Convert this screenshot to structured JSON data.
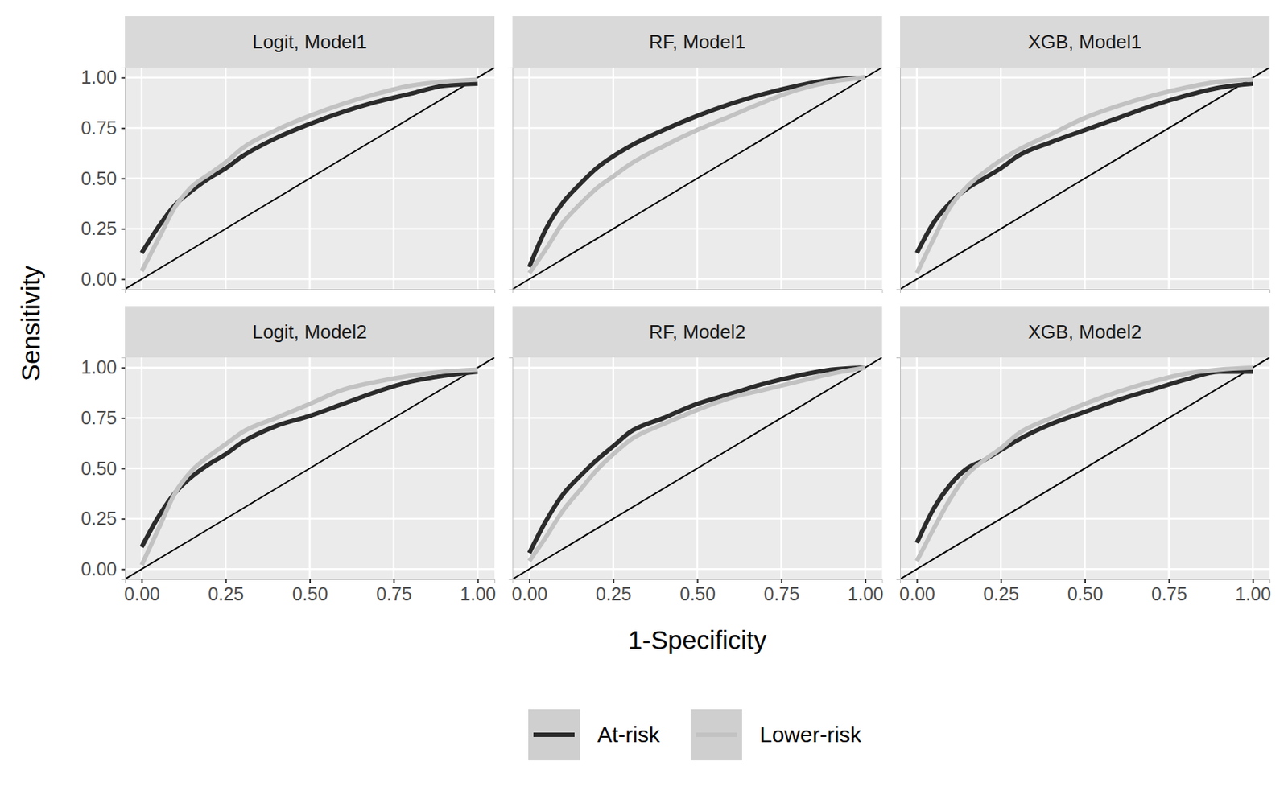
{
  "chart_data": [
    {
      "type": "line",
      "title": "Logit, Model1",
      "x": [
        0,
        0.05,
        0.1,
        0.15,
        0.2,
        0.25,
        0.3,
        0.4,
        0.5,
        0.6,
        0.7,
        0.8,
        0.9,
        1.0
      ],
      "series": [
        {
          "name": "At-risk",
          "color": "#2b2b2b",
          "values": [
            0.13,
            0.26,
            0.37,
            0.44,
            0.5,
            0.55,
            0.61,
            0.7,
            0.77,
            0.83,
            0.88,
            0.92,
            0.96,
            0.97
          ]
        },
        {
          "name": "Lower-risk",
          "color": "#c2c2c2",
          "values": [
            0.04,
            0.2,
            0.36,
            0.46,
            0.52,
            0.58,
            0.65,
            0.74,
            0.81,
            0.87,
            0.92,
            0.96,
            0.98,
            0.99
          ]
        }
      ],
      "xlim": [
        -0.05,
        1.05
      ],
      "ylim": [
        -0.05,
        1.05
      ],
      "xticks": [
        {
          "value": 0,
          "label": "0.00"
        },
        {
          "value": 0.25,
          "label": "0.25"
        },
        {
          "value": 0.5,
          "label": "0.50"
        },
        {
          "value": 0.75,
          "label": "0.75"
        },
        {
          "value": 1,
          "label": "1.00"
        }
      ],
      "yticks": [
        {
          "value": 0,
          "label": "0.00"
        },
        {
          "value": 0.25,
          "label": "0.25"
        },
        {
          "value": 0.5,
          "label": "0.50"
        },
        {
          "value": 0.75,
          "label": "0.75"
        },
        {
          "value": 1,
          "label": "1.00"
        }
      ],
      "grid": true,
      "tick_labels": "y",
      "legend": "bottom"
    },
    {
      "type": "line",
      "title": "RF, Model1",
      "x": [
        0,
        0.05,
        0.1,
        0.15,
        0.2,
        0.25,
        0.3,
        0.4,
        0.5,
        0.6,
        0.7,
        0.8,
        0.9,
        1.0
      ],
      "series": [
        {
          "name": "At-risk",
          "color": "#2b2b2b",
          "values": [
            0.06,
            0.25,
            0.38,
            0.47,
            0.55,
            0.61,
            0.66,
            0.74,
            0.81,
            0.87,
            0.92,
            0.96,
            0.99,
            1.0
          ]
        },
        {
          "name": "Lower-risk",
          "color": "#c2c2c2",
          "values": [
            0.03,
            0.15,
            0.28,
            0.37,
            0.45,
            0.51,
            0.57,
            0.66,
            0.74,
            0.81,
            0.88,
            0.94,
            0.98,
            1.0
          ]
        }
      ],
      "xlim": [
        -0.05,
        1.05
      ],
      "ylim": [
        -0.05,
        1.05
      ],
      "xticks": [
        {
          "value": 0,
          "label": "0.00"
        },
        {
          "value": 0.25,
          "label": "0.25"
        },
        {
          "value": 0.5,
          "label": "0.50"
        },
        {
          "value": 0.75,
          "label": "0.75"
        },
        {
          "value": 1,
          "label": "1.00"
        }
      ],
      "yticks": [
        {
          "value": 0,
          "label": "0.00"
        },
        {
          "value": 0.25,
          "label": "0.25"
        },
        {
          "value": 0.5,
          "label": "0.50"
        },
        {
          "value": 0.75,
          "label": "0.75"
        },
        {
          "value": 1,
          "label": "1.00"
        }
      ],
      "grid": true,
      "tick_labels": false
    },
    {
      "type": "line",
      "title": "XGB, Model1",
      "x": [
        0,
        0.05,
        0.1,
        0.15,
        0.2,
        0.25,
        0.3,
        0.4,
        0.5,
        0.6,
        0.7,
        0.8,
        0.9,
        1.0
      ],
      "series": [
        {
          "name": "At-risk",
          "color": "#2b2b2b",
          "values": [
            0.13,
            0.28,
            0.38,
            0.45,
            0.5,
            0.55,
            0.61,
            0.68,
            0.74,
            0.8,
            0.86,
            0.91,
            0.95,
            0.97
          ]
        },
        {
          "name": "Lower-risk",
          "color": "#c2c2c2",
          "values": [
            0.03,
            0.2,
            0.36,
            0.46,
            0.53,
            0.59,
            0.64,
            0.72,
            0.8,
            0.86,
            0.91,
            0.95,
            0.98,
            0.99
          ]
        }
      ],
      "xlim": [
        -0.05,
        1.05
      ],
      "ylim": [
        -0.05,
        1.05
      ],
      "xticks": [
        {
          "value": 0,
          "label": "0.00"
        },
        {
          "value": 0.25,
          "label": "0.25"
        },
        {
          "value": 0.5,
          "label": "0.50"
        },
        {
          "value": 0.75,
          "label": "0.75"
        },
        {
          "value": 1,
          "label": "1.00"
        }
      ],
      "yticks": [
        {
          "value": 0,
          "label": "0.00"
        },
        {
          "value": 0.25,
          "label": "0.25"
        },
        {
          "value": 0.5,
          "label": "0.50"
        },
        {
          "value": 0.75,
          "label": "0.75"
        },
        {
          "value": 1,
          "label": "1.00"
        }
      ],
      "grid": true,
      "tick_labels": false
    },
    {
      "type": "line",
      "title": "Logit, Model2",
      "x": [
        0,
        0.05,
        0.1,
        0.15,
        0.2,
        0.25,
        0.3,
        0.4,
        0.5,
        0.6,
        0.7,
        0.8,
        0.9,
        1.0
      ],
      "series": [
        {
          "name": "At-risk",
          "color": "#2b2b2b",
          "values": [
            0.11,
            0.26,
            0.38,
            0.46,
            0.52,
            0.57,
            0.63,
            0.71,
            0.76,
            0.82,
            0.88,
            0.93,
            0.96,
            0.98
          ]
        },
        {
          "name": "Lower-risk",
          "color": "#c2c2c2",
          "values": [
            0.02,
            0.2,
            0.38,
            0.49,
            0.56,
            0.62,
            0.68,
            0.75,
            0.82,
            0.89,
            0.93,
            0.96,
            0.98,
            0.99
          ]
        }
      ],
      "xlim": [
        -0.05,
        1.05
      ],
      "ylim": [
        -0.05,
        1.05
      ],
      "xticks": [
        {
          "value": 0,
          "label": "0.00"
        },
        {
          "value": 0.25,
          "label": "0.25"
        },
        {
          "value": 0.5,
          "label": "0.50"
        },
        {
          "value": 0.75,
          "label": "0.75"
        },
        {
          "value": 1,
          "label": "1.00"
        }
      ],
      "yticks": [
        {
          "value": 0,
          "label": "0.00"
        },
        {
          "value": 0.25,
          "label": "0.25"
        },
        {
          "value": 0.5,
          "label": "0.50"
        },
        {
          "value": 0.75,
          "label": "0.75"
        },
        {
          "value": 1,
          "label": "1.00"
        }
      ],
      "grid": true,
      "tick_labels": true,
      "x_label": "1-Specificity",
      "y_label": "Sensitivity"
    },
    {
      "type": "line",
      "title": "RF, Model2",
      "x": [
        0,
        0.05,
        0.1,
        0.15,
        0.2,
        0.25,
        0.3,
        0.4,
        0.5,
        0.6,
        0.7,
        0.8,
        0.9,
        1.0
      ],
      "series": [
        {
          "name": "At-risk",
          "color": "#2b2b2b",
          "values": [
            0.08,
            0.24,
            0.37,
            0.46,
            0.54,
            0.61,
            0.68,
            0.75,
            0.82,
            0.87,
            0.92,
            0.96,
            0.99,
            1.0
          ]
        },
        {
          "name": "Lower-risk",
          "color": "#c2c2c2",
          "values": [
            0.04,
            0.16,
            0.29,
            0.39,
            0.49,
            0.57,
            0.64,
            0.72,
            0.79,
            0.85,
            0.89,
            0.93,
            0.97,
            1.0
          ]
        }
      ],
      "xlim": [
        -0.05,
        1.05
      ],
      "ylim": [
        -0.05,
        1.05
      ],
      "xticks": [
        {
          "value": 0,
          "label": "0.00"
        },
        {
          "value": 0.25,
          "label": "0.25"
        },
        {
          "value": 0.5,
          "label": "0.50"
        },
        {
          "value": 0.75,
          "label": "0.75"
        },
        {
          "value": 1,
          "label": "1.00"
        }
      ],
      "yticks": [
        {
          "value": 0,
          "label": "0.00"
        },
        {
          "value": 0.25,
          "label": "0.25"
        },
        {
          "value": 0.5,
          "label": "0.50"
        },
        {
          "value": 0.75,
          "label": "0.75"
        },
        {
          "value": 1,
          "label": "1.00"
        }
      ],
      "grid": true,
      "tick_labels": "x"
    },
    {
      "type": "line",
      "title": "XGB, Model2",
      "x": [
        0,
        0.05,
        0.1,
        0.15,
        0.2,
        0.25,
        0.3,
        0.4,
        0.5,
        0.6,
        0.7,
        0.8,
        0.9,
        1.0
      ],
      "series": [
        {
          "name": "At-risk",
          "color": "#2b2b2b",
          "values": [
            0.13,
            0.3,
            0.42,
            0.5,
            0.54,
            0.59,
            0.64,
            0.72,
            0.78,
            0.84,
            0.89,
            0.94,
            0.98,
            0.98
          ]
        },
        {
          "name": "Lower-risk",
          "color": "#c2c2c2",
          "values": [
            0.04,
            0.2,
            0.35,
            0.47,
            0.54,
            0.6,
            0.67,
            0.75,
            0.82,
            0.88,
            0.93,
            0.97,
            0.99,
            1.0
          ]
        }
      ],
      "xlim": [
        -0.05,
        1.05
      ],
      "ylim": [
        -0.05,
        1.05
      ],
      "xticks": [
        {
          "value": 0,
          "label": "0.00"
        },
        {
          "value": 0.25,
          "label": "0.25"
        },
        {
          "value": 0.5,
          "label": "0.50"
        },
        {
          "value": 0.75,
          "label": "0.75"
        },
        {
          "value": 1,
          "label": "1.00"
        }
      ],
      "yticks": [
        {
          "value": 0,
          "label": "0.00"
        },
        {
          "value": 0.25,
          "label": "0.25"
        },
        {
          "value": 0.5,
          "label": "0.50"
        },
        {
          "value": 0.75,
          "label": "0.75"
        },
        {
          "value": 1,
          "label": "1.00"
        }
      ],
      "grid": true,
      "tick_labels": "x"
    }
  ]
}
